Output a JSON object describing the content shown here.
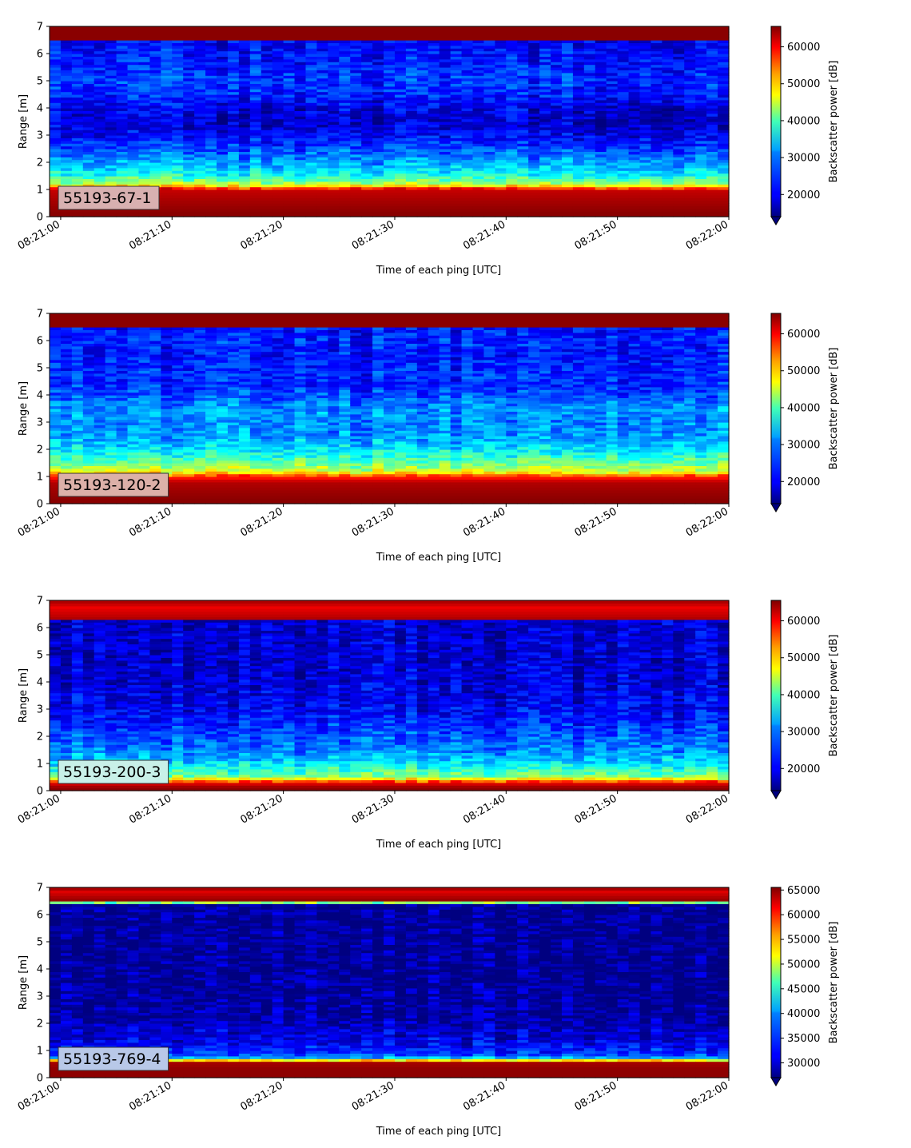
{
  "figure": {
    "panels": [
      {
        "label": "55193-67-1",
        "label_bg": "#d8b0b0",
        "xlabel": "Time of each ping [UTC]",
        "ylabel": "Range [m]",
        "colorbar_label": "Backscatter power [dB]",
        "colorbar_ticks": [
          "20000",
          "30000",
          "40000",
          "50000",
          "60000"
        ],
        "colorbar_tick_values": [
          20000,
          30000,
          40000,
          50000,
          60000
        ],
        "clim": [
          14000,
          65535
        ],
        "x_ticks": [
          "08:21:00",
          "08:21:10",
          "08:21:20",
          "08:21:30",
          "08:21:40",
          "08:21:50",
          "08:22:00"
        ],
        "y_ticks": [
          "0",
          "1",
          "2",
          "3",
          "4",
          "5",
          "6",
          "7"
        ]
      },
      {
        "label": "55193-120-2",
        "label_bg": "#dcb0a8",
        "xlabel": "Time of each ping [UTC]",
        "ylabel": "Range [m]",
        "colorbar_label": "Backscatter power [dB]",
        "colorbar_ticks": [
          "20000",
          "30000",
          "40000",
          "50000",
          "60000"
        ],
        "colorbar_tick_values": [
          20000,
          30000,
          40000,
          50000,
          60000
        ],
        "clim": [
          14000,
          65535
        ],
        "x_ticks": [
          "08:21:00",
          "08:21:10",
          "08:21:20",
          "08:21:30",
          "08:21:40",
          "08:21:50",
          "08:22:00"
        ],
        "y_ticks": [
          "0",
          "1",
          "2",
          "3",
          "4",
          "5",
          "6",
          "7"
        ]
      },
      {
        "label": "55193-200-3",
        "label_bg": "#c8f0e8",
        "xlabel": "Time of each ping [UTC]",
        "ylabel": "Range [m]",
        "colorbar_label": "Backscatter power [dB]",
        "colorbar_ticks": [
          "20000",
          "30000",
          "40000",
          "50000",
          "60000"
        ],
        "colorbar_tick_values": [
          20000,
          30000,
          40000,
          50000,
          60000
        ],
        "clim": [
          14000,
          65535
        ],
        "x_ticks": [
          "08:21:00",
          "08:21:10",
          "08:21:20",
          "08:21:30",
          "08:21:40",
          "08:21:50",
          "08:22:00"
        ],
        "y_ticks": [
          "0",
          "1",
          "2",
          "3",
          "4",
          "5",
          "6",
          "7"
        ]
      },
      {
        "label": "55193-769-4",
        "label_bg": "#b8c8e8",
        "xlabel": "Time of each ping [UTC]",
        "ylabel": "Range [m]",
        "colorbar_label": "Backscatter power [dB]",
        "colorbar_ticks": [
          "30000",
          "35000",
          "40000",
          "45000",
          "50000",
          "55000",
          "60000",
          "65000"
        ],
        "colorbar_tick_values": [
          30000,
          35000,
          40000,
          45000,
          50000,
          55000,
          60000,
          65000
        ],
        "clim": [
          27000,
          65535
        ],
        "x_ticks": [
          "08:21:00",
          "08:21:10",
          "08:21:20",
          "08:21:30",
          "08:21:40",
          "08:21:50",
          "08:22:00"
        ],
        "y_ticks": [
          "0",
          "1",
          "2",
          "3",
          "4",
          "5",
          "6",
          "7"
        ]
      }
    ]
  },
  "chart_data": [
    {
      "type": "heatmap",
      "colormap": "jet",
      "x_range": [
        "08:20:59",
        "08:22:00"
      ],
      "ylim": [
        0,
        7
      ],
      "clim": [
        14000,
        65535
      ],
      "range_profile": [
        {
          "range_m": 0.15,
          "power": 65000
        },
        {
          "range_m": 0.6,
          "power": 63500
        },
        {
          "range_m": 1.0,
          "power": 62000
        },
        {
          "range_m": 1.2,
          "power": 42000
        },
        {
          "range_m": 1.6,
          "power": 33000
        },
        {
          "range_m": 2.0,
          "power": 28500
        },
        {
          "range_m": 2.5,
          "power": 24000
        },
        {
          "range_m": 3.0,
          "power": 20000
        },
        {
          "range_m": 3.5,
          "power": 17500
        },
        {
          "range_m": 4.0,
          "power": 19000
        },
        {
          "range_m": 4.5,
          "power": 22000
        },
        {
          "range_m": 5.0,
          "power": 23000
        },
        {
          "range_m": 5.5,
          "power": 22000
        },
        {
          "range_m": 6.0,
          "power": 21000
        },
        {
          "range_m": 6.45,
          "power": 20000
        },
        {
          "range_m": 6.55,
          "power": 65000
        },
        {
          "range_m": 7.0,
          "power": 65000
        }
      ]
    },
    {
      "type": "heatmap",
      "colormap": "jet",
      "x_range": [
        "08:20:59",
        "08:22:00"
      ],
      "ylim": [
        0,
        7
      ],
      "clim": [
        14000,
        65535
      ],
      "range_profile": [
        {
          "range_m": 0.15,
          "power": 65000
        },
        {
          "range_m": 0.8,
          "power": 63000
        },
        {
          "range_m": 1.0,
          "power": 57000
        },
        {
          "range_m": 1.2,
          "power": 44000
        },
        {
          "range_m": 1.6,
          "power": 37000
        },
        {
          "range_m": 2.0,
          "power": 32000
        },
        {
          "range_m": 2.5,
          "power": 28000
        },
        {
          "range_m": 3.0,
          "power": 27000
        },
        {
          "range_m": 3.5,
          "power": 28000
        },
        {
          "range_m": 4.0,
          "power": 24000
        },
        {
          "range_m": 4.5,
          "power": 22000
        },
        {
          "range_m": 5.0,
          "power": 22000
        },
        {
          "range_m": 5.5,
          "power": 21000
        },
        {
          "range_m": 6.0,
          "power": 22000
        },
        {
          "range_m": 6.45,
          "power": 21000
        },
        {
          "range_m": 6.55,
          "power": 65000
        },
        {
          "range_m": 7.0,
          "power": 65000
        }
      ]
    },
    {
      "type": "heatmap",
      "colormap": "jet",
      "x_range": [
        "08:20:59",
        "08:22:00"
      ],
      "ylim": [
        0,
        7
      ],
      "clim": [
        14000,
        65535
      ],
      "range_profile": [
        {
          "range_m": 0.1,
          "power": 65000
        },
        {
          "range_m": 0.3,
          "power": 60000
        },
        {
          "range_m": 0.5,
          "power": 40000
        },
        {
          "range_m": 1.0,
          "power": 32000
        },
        {
          "range_m": 1.5,
          "power": 27000
        },
        {
          "range_m": 2.0,
          "power": 25000
        },
        {
          "range_m": 2.5,
          "power": 22000
        },
        {
          "range_m": 3.0,
          "power": 20000
        },
        {
          "range_m": 4.0,
          "power": 18500
        },
        {
          "range_m": 5.0,
          "power": 18000
        },
        {
          "range_m": 6.0,
          "power": 18000
        },
        {
          "range_m": 6.25,
          "power": 18000
        },
        {
          "range_m": 6.35,
          "power": 63000
        },
        {
          "range_m": 6.75,
          "power": 60000
        },
        {
          "range_m": 7.0,
          "power": 64000
        }
      ]
    },
    {
      "type": "heatmap",
      "colormap": "jet",
      "x_range": [
        "08:20:59",
        "08:22:00"
      ],
      "ylim": [
        0,
        7
      ],
      "clim": [
        27000,
        65535
      ],
      "range_profile": [
        {
          "range_m": 0.3,
          "power": 65000
        },
        {
          "range_m": 0.6,
          "power": 64000
        },
        {
          "range_m": 0.7,
          "power": 40000
        },
        {
          "range_m": 0.9,
          "power": 34000
        },
        {
          "range_m": 1.3,
          "power": 31000
        },
        {
          "range_m": 1.8,
          "power": 30000
        },
        {
          "range_m": 2.2,
          "power": 28500
        },
        {
          "range_m": 4.0,
          "power": 28000
        },
        {
          "range_m": 6.4,
          "power": 28000
        },
        {
          "range_m": 6.5,
          "power": 65000
        },
        {
          "range_m": 6.85,
          "power": 62000
        },
        {
          "range_m": 7.0,
          "power": 65000
        }
      ]
    }
  ]
}
